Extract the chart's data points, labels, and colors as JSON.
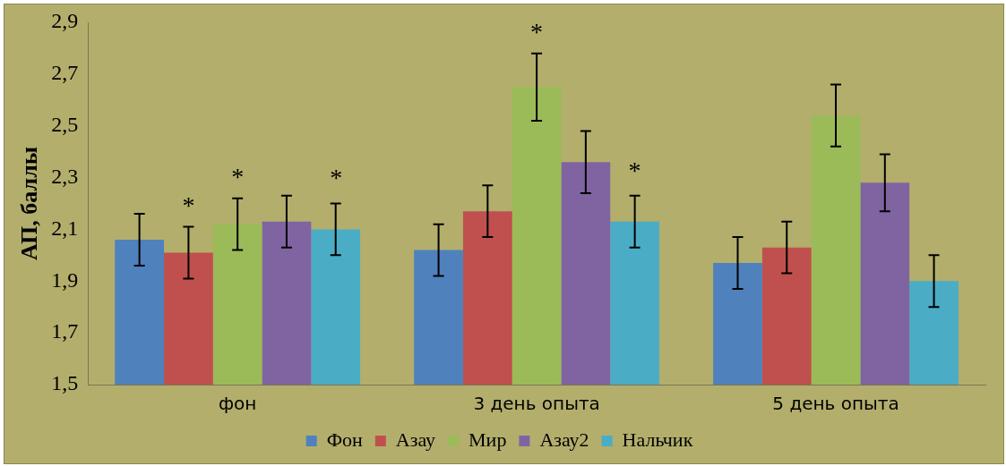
{
  "chart_data": {
    "type": "bar",
    "ylabel": "АП, баллы",
    "categories": [
      "фон",
      "3 день опыта",
      "5 день опыта"
    ],
    "series": [
      {
        "name": "Фон",
        "color": "#4f81bd",
        "values": [
          2.06,
          2.02,
          1.97
        ],
        "errors": [
          0.1,
          0.1,
          0.1
        ]
      },
      {
        "name": "Азау",
        "color": "#c0504d",
        "values": [
          2.01,
          2.17,
          2.03
        ],
        "errors": [
          0.1,
          0.1,
          0.1
        ]
      },
      {
        "name": "Мир",
        "color": "#9bbb59",
        "values": [
          2.12,
          2.65,
          2.54
        ],
        "errors": [
          0.1,
          0.13,
          0.12
        ]
      },
      {
        "name": "Азау2",
        "color": "#8064a2",
        "values": [
          2.13,
          2.36,
          2.28
        ],
        "errors": [
          0.1,
          0.12,
          0.11
        ]
      },
      {
        "name": "Нальчик",
        "color": "#4bacc6",
        "values": [
          2.1,
          2.13,
          1.9
        ],
        "errors": [
          0.1,
          0.1,
          0.1
        ]
      }
    ],
    "annotations": [
      {
        "text": "*",
        "x": "фон",
        "y": 2.01
      },
      {
        "text": "*",
        "x": "фон",
        "y": 2.12
      },
      "*",
      {
        "text": "*",
        "x": "3 день опыта",
        "y": 2.65
      },
      "*"
    ],
    "ylim": [
      1.5,
      2.9
    ],
    "yticks": [
      {
        "value": 1.5,
        "label": "1,5"
      },
      {
        "value": 1.7,
        "label": "1,7"
      },
      {
        "value": 1.9,
        "label": "1,9"
      },
      {
        "value": 2.1,
        "label": "2,1"
      },
      {
        "value": 2.3,
        "label": "2,3"
      },
      {
        "value": 2.5,
        "label": "2,5"
      },
      {
        "value": 2.7,
        "label": "2,7"
      },
      {
        "value": 2.9,
        "label": "2,9"
      }
    ],
    "grid": false,
    "legend": "bottom"
  }
}
